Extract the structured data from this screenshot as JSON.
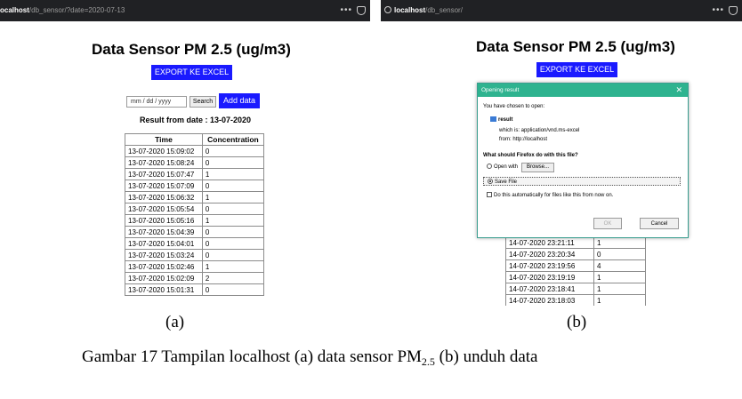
{
  "panel_a": {
    "url_host": "ocalhost",
    "url_path": "/db_sensor/?date=2020-07-13",
    "title": "Data Sensor PM 2.5 (ug/m3)",
    "export_button": "EXPORT KE EXCEL",
    "date_placeholder": "mm / dd / yyyy",
    "search_button": "Search",
    "add_button": "Add data",
    "result_label": "Result from date : 13-07-2020",
    "table_headers": [
      "Time",
      "Concentration"
    ],
    "rows": [
      {
        "time": "13-07-2020 15:09:02",
        "value": "0"
      },
      {
        "time": "13-07-2020 15:08:24",
        "value": "0"
      },
      {
        "time": "13-07-2020 15:07:47",
        "value": "1"
      },
      {
        "time": "13-07-2020 15:07:09",
        "value": "0"
      },
      {
        "time": "13-07-2020 15:06:32",
        "value": "1"
      },
      {
        "time": "13-07-2020 15:05:54",
        "value": "0"
      },
      {
        "time": "13-07-2020 15:05:16",
        "value": "1"
      },
      {
        "time": "13-07-2020 15:04:39",
        "value": "0"
      },
      {
        "time": "13-07-2020 15:04:01",
        "value": "0"
      },
      {
        "time": "13-07-2020 15:03:24",
        "value": "0"
      },
      {
        "time": "13-07-2020 15:02:46",
        "value": "1"
      },
      {
        "time": "13-07-2020 15:02:09",
        "value": "2"
      },
      {
        "time": "13-07-2020 15:01:31",
        "value": "0"
      }
    ]
  },
  "panel_b": {
    "url_host": "localhost",
    "url_path": "/db_sensor/",
    "title": "Data Sensor PM 2.5 (ug/m3)",
    "export_button": "EXPORT KE EXCEL",
    "rows": [
      {
        "time": "14-07-2020 23:21:11",
        "value": "1"
      },
      {
        "time": "14-07-2020 23:20:34",
        "value": "0"
      },
      {
        "time": "14-07-2020 23:19:56",
        "value": "4"
      },
      {
        "time": "14-07-2020 23:19:19",
        "value": "1"
      },
      {
        "time": "14-07-2020 23:18:41",
        "value": "1"
      },
      {
        "time": "14-07-2020 23:18:03",
        "value": "1"
      }
    ],
    "dialog": {
      "title": "Opening result",
      "close": "✕",
      "chosen": "You have chosen to open:",
      "filename": "result",
      "which_is": "which is: application/vnd.ms-excel",
      "from": "from: http://localhost",
      "question": "What should Firefox do with this file?",
      "open_with": "Open with",
      "browse": "Browse...",
      "save_file": "Save File",
      "auto_checkbox": "Do this automatically for files like this from now on.",
      "ok": "OK",
      "cancel": "Cancel"
    }
  },
  "captions": {
    "a": "(a)",
    "b": "(b)",
    "figure_pre": "Gambar 17 Tampilan localhost (a) data sensor PM",
    "figure_sub": "2.5",
    "figure_post": " (b) unduh data"
  }
}
